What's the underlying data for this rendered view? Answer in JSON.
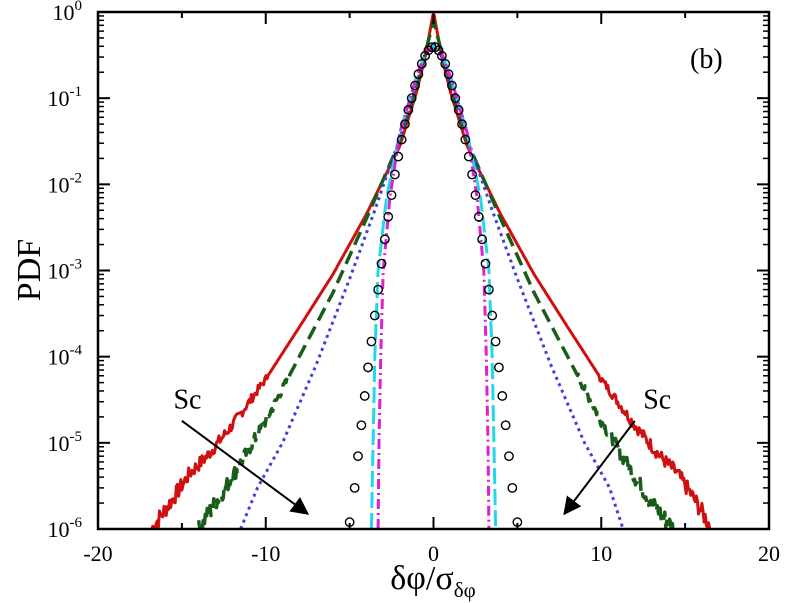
{
  "chart_data": {
    "type": "line",
    "panel_label": "(b)",
    "xlabel": "δφ/σ",
    "xlabel_subscript": "δφ",
    "ylabel": "PDF",
    "xlim": [
      -20,
      20
    ],
    "ylim": [
      1e-06,
      1
    ],
    "yscale": "log",
    "grid": false,
    "x_ticks": [
      -20,
      -10,
      0,
      10,
      20
    ],
    "x_tick_labels": [
      "-20",
      "-10",
      "0",
      "10",
      "20"
    ],
    "y_ticks": [
      {
        "value": 1e-06,
        "base": "10",
        "exp": "-6"
      },
      {
        "value": 1e-05,
        "base": "10",
        "exp": "-5"
      },
      {
        "value": 0.0001,
        "base": "10",
        "exp": "-4"
      },
      {
        "value": 0.001,
        "base": "10",
        "exp": "-3"
      },
      {
        "value": 0.01,
        "base": "10",
        "exp": "-2"
      },
      {
        "value": 0.1,
        "base": "10",
        "exp": "-1"
      },
      {
        "value": 1,
        "base": "10",
        "exp": "0"
      }
    ],
    "annotations": [
      {
        "text": "Sc",
        "x": -15.5,
        "y": 2.5e-05,
        "arrow_from": [
          -15.0,
          1.8e-05
        ],
        "arrow_to": [
          -7.5,
          1.5e-06
        ]
      },
      {
        "text": "Sc",
        "x": 12.5,
        "y": 2.5e-05,
        "arrow_from": [
          12.0,
          1.8e-05
        ],
        "arrow_to": [
          7.8,
          1.5e-06
        ]
      }
    ],
    "series": [
      {
        "color": "#d01010",
        "dash": "",
        "width": 3,
        "noisy_tails": true,
        "x": [
          -16.8,
          -15.5,
          -14.5,
          -13.5,
          -12,
          -10,
          -8,
          -6,
          -4,
          -2,
          -1,
          -0.5,
          0,
          0.5,
          1,
          2,
          4,
          6,
          8,
          10,
          12,
          13.5,
          14.5,
          15.5,
          16.6
        ],
        "y": [
          1e-06,
          2.3e-06,
          4.5e-06,
          7e-06,
          1.6e-05,
          5.5e-05,
          0.00022,
          0.0009,
          0.0045,
          0.028,
          0.12,
          0.3,
          1.0,
          0.3,
          0.12,
          0.028,
          0.0045,
          0.0009,
          0.00022,
          5.5e-05,
          1.6e-05,
          7e-06,
          4.5e-06,
          2.3e-06,
          1e-06
        ]
      },
      {
        "color": "#1a5c1a",
        "dash": "14,7",
        "width": 3.5,
        "noisy_tails": true,
        "x": [
          -14,
          -13,
          -12,
          -10,
          -8,
          -6,
          -4,
          -2,
          -1,
          -0.5,
          0,
          0.5,
          1,
          2,
          4,
          6,
          8,
          10,
          12,
          13,
          14.3
        ],
        "y": [
          1e-06,
          2e-06,
          4e-06,
          1.8e-05,
          0.0001,
          0.00055,
          0.004,
          0.032,
          0.14,
          0.33,
          0.8,
          0.33,
          0.14,
          0.032,
          0.004,
          0.00055,
          0.0001,
          1.8e-05,
          4e-06,
          2e-06,
          1e-06
        ]
      },
      {
        "color": "#4040e0",
        "dash": "3,4",
        "width": 3,
        "noisy_tails": false,
        "x": [
          -11.5,
          -10.5,
          -9,
          -7,
          -5,
          -3.5,
          -2,
          -1,
          -0.5,
          0,
          0.5,
          1,
          2,
          3.5,
          5,
          7,
          9,
          10.5,
          11.3
        ],
        "y": [
          1e-06,
          3e-06,
          1e-05,
          8e-05,
          0.0008,
          0.005,
          0.035,
          0.15,
          0.3,
          0.45,
          0.3,
          0.15,
          0.035,
          0.005,
          0.0008,
          8e-05,
          1e-05,
          3e-06,
          1e-06
        ]
      },
      {
        "color": "#20d8e8",
        "dash": "16,5",
        "width": 3,
        "noisy_tails": false,
        "x": [
          -3.7,
          -3.6,
          -3.5,
          -3.3,
          -2.8,
          -2,
          -1,
          -0.5,
          0,
          0.5,
          1,
          2,
          2.8,
          3.3,
          3.5,
          3.6,
          3.7
        ],
        "y": [
          1e-06,
          1e-05,
          0.0001,
          0.001,
          0.007,
          0.04,
          0.18,
          0.33,
          0.4,
          0.33,
          0.18,
          0.04,
          0.007,
          0.001,
          0.0001,
          1e-05,
          1e-06
        ]
      },
      {
        "color": "#e020d0",
        "dash": "10,4,2,4",
        "width": 3,
        "noisy_tails": false,
        "x": [
          -3.3,
          -3.25,
          -3.15,
          -3.0,
          -2.6,
          -2,
          -1,
          -0.5,
          0,
          0.5,
          1,
          2,
          2.6,
          3.0,
          3.15,
          3.25,
          3.3
        ],
        "y": [
          1e-06,
          1e-05,
          0.0001,
          0.001,
          0.007,
          0.04,
          0.18,
          0.33,
          0.4,
          0.33,
          0.18,
          0.04,
          0.007,
          0.001,
          0.0001,
          1e-05,
          1e-06
        ]
      },
      {
        "marker": "circle",
        "color": "#000000",
        "x": [
          -5.0,
          -4.7,
          -4.5,
          -4.3,
          -4.1,
          -3.9,
          -3.7,
          -3.5,
          -3.3,
          -3.1,
          -2.9,
          -2.7,
          -2.5,
          -2.3,
          -2.1,
          -1.9,
          -1.7,
          -1.5,
          -1.3,
          -1.1,
          -0.9,
          -0.7,
          -0.5,
          -0.3,
          -0.1,
          0.1,
          0.3,
          0.5,
          0.7,
          0.9,
          1.1,
          1.3,
          1.5,
          1.7,
          1.9,
          2.1,
          2.3,
          2.5,
          2.7,
          2.9,
          3.1,
          3.3,
          3.5,
          3.7,
          3.9,
          4.1,
          4.3,
          4.5,
          4.7,
          5.0
        ],
        "y": [
          1.2e-06,
          3e-06,
          7e-06,
          1.6e-05,
          3.5e-05,
          7.5e-05,
          0.00015,
          0.0003,
          0.0006,
          0.0012,
          0.0023,
          0.0042,
          0.0075,
          0.013,
          0.021,
          0.033,
          0.05,
          0.073,
          0.1,
          0.14,
          0.19,
          0.25,
          0.31,
          0.36,
          0.39,
          0.39,
          0.36,
          0.31,
          0.25,
          0.19,
          0.14,
          0.1,
          0.073,
          0.05,
          0.033,
          0.021,
          0.013,
          0.0075,
          0.0042,
          0.0023,
          0.0012,
          0.0006,
          0.0003,
          0.00015,
          7.5e-05,
          3.5e-05,
          1.6e-05,
          7e-06,
          3e-06,
          1.2e-06
        ]
      }
    ]
  }
}
